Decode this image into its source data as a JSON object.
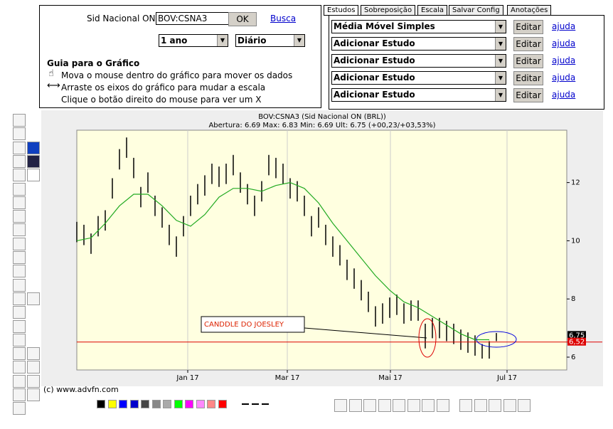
{
  "search": {
    "label": "Sid Nacional ON",
    "symbol": "BOV:CSNA3",
    "ok": "OK",
    "link": "Busca",
    "period": "1 ano",
    "interval": "Diário"
  },
  "guide": {
    "title": "Guia para o Gráfico",
    "lines": [
      "Mova o mouse dentro do gráfico para mover os dados",
      "Arraste os eixos do gráfico para mudar a escala",
      "Clique o botão direito do mouse para ver um X"
    ]
  },
  "tabs": [
    "Estudos",
    "Sobreposição",
    "Escala",
    "Salvar Config",
    "Anotações"
  ],
  "studies": {
    "rows": [
      "Média Móvel Simples",
      "Adicionar Estudo",
      "Adicionar Estudo",
      "Adicionar Estudo",
      "Adicionar Estudo"
    ],
    "edit": "Editar",
    "help": "ajuda"
  },
  "copyright": "(c) www.advfn.com",
  "chart_data": {
    "type": "ohlc",
    "title": "BOV:CSNA3 (Sid Nacional ON (BRL))",
    "subtitle": "Abertura: 6.69 Max: 6.83 Min: 6.69 Ult: 6.75 (+00,23/+03,53%)",
    "xlim": [
      0,
      68.9
    ],
    "ylim": [
      5.56,
      13.8
    ],
    "yticks": [
      6,
      8,
      10,
      12
    ],
    "xticks": [
      {
        "value": 15.6,
        "label": "Jan 17"
      },
      {
        "value": 29.6,
        "label": "Mar 17"
      },
      {
        "value": 44.1,
        "label": "Mai 17"
      },
      {
        "value": 60.5,
        "label": "Jul 17"
      }
    ],
    "grid": true,
    "bar_color": "#000000",
    "high": [
      10.65,
      10.55,
      10.25,
      10.85,
      11.05,
      12.15,
      13.15,
      13.55,
      12.85,
      11.85,
      12.35,
      11.55,
      11.15,
      10.55,
      10.15,
      10.85,
      11.55,
      11.95,
      12.25,
      12.65,
      12.55,
      12.65,
      12.95,
      12.35,
      11.95,
      11.55,
      12.05,
      12.95,
      12.85,
      12.65,
      12.15,
      12.05,
      11.55,
      10.85,
      11.15,
      10.55,
      10.15,
      9.85,
      9.35,
      9.05,
      8.65,
      8.25,
      7.75,
      7.85,
      8.05,
      8.15,
      7.85,
      7.95,
      7.95,
      7.15,
      7.35,
      7.35,
      7.25,
      7.15,
      6.95,
      6.85,
      6.75,
      6.45,
      6.55,
      6.83
    ],
    "low": [
      9.95,
      9.85,
      9.55,
      10.15,
      10.35,
      11.45,
      12.45,
      12.85,
      12.15,
      11.15,
      11.65,
      10.85,
      10.45,
      9.85,
      9.45,
      10.15,
      10.85,
      11.25,
      11.55,
      11.95,
      11.85,
      11.95,
      12.25,
      11.65,
      11.25,
      10.85,
      11.35,
      12.25,
      12.15,
      11.95,
      11.45,
      11.35,
      10.85,
      10.15,
      10.45,
      9.85,
      9.45,
      9.15,
      8.65,
      8.35,
      7.95,
      7.55,
      7.05,
      7.15,
      7.35,
      7.45,
      7.15,
      7.25,
      7.25,
      6.3,
      6.65,
      6.65,
      6.55,
      6.45,
      6.25,
      6.15,
      6.05,
      5.95,
      5.95,
      6.55
    ],
    "series": [
      {
        "name": "Média Móvel Simples",
        "color": "#22aa22",
        "x": [
          0,
          2,
          4,
          6,
          8,
          10,
          12,
          14,
          16,
          18,
          20,
          22,
          24,
          26,
          28,
          30,
          32,
          34,
          36,
          38,
          40,
          42,
          44,
          46,
          48,
          50,
          52,
          54,
          56,
          58
        ],
        "values": [
          10.0,
          10.1,
          10.6,
          11.2,
          11.6,
          11.6,
          11.2,
          10.7,
          10.5,
          10.9,
          11.5,
          11.8,
          11.8,
          11.7,
          11.9,
          12.0,
          11.8,
          11.3,
          10.6,
          10.0,
          9.4,
          8.8,
          8.3,
          7.9,
          7.7,
          7.4,
          7.1,
          6.8,
          6.6,
          6.6
        ]
      }
    ],
    "price_labels": [
      {
        "value": 6.75,
        "label": "6,75",
        "color": "#000000"
      },
      {
        "value": 6.52,
        "label": "6,52",
        "color": "#dd0000"
      }
    ],
    "annotation": "CANDDLE DO JOESLEY"
  }
}
